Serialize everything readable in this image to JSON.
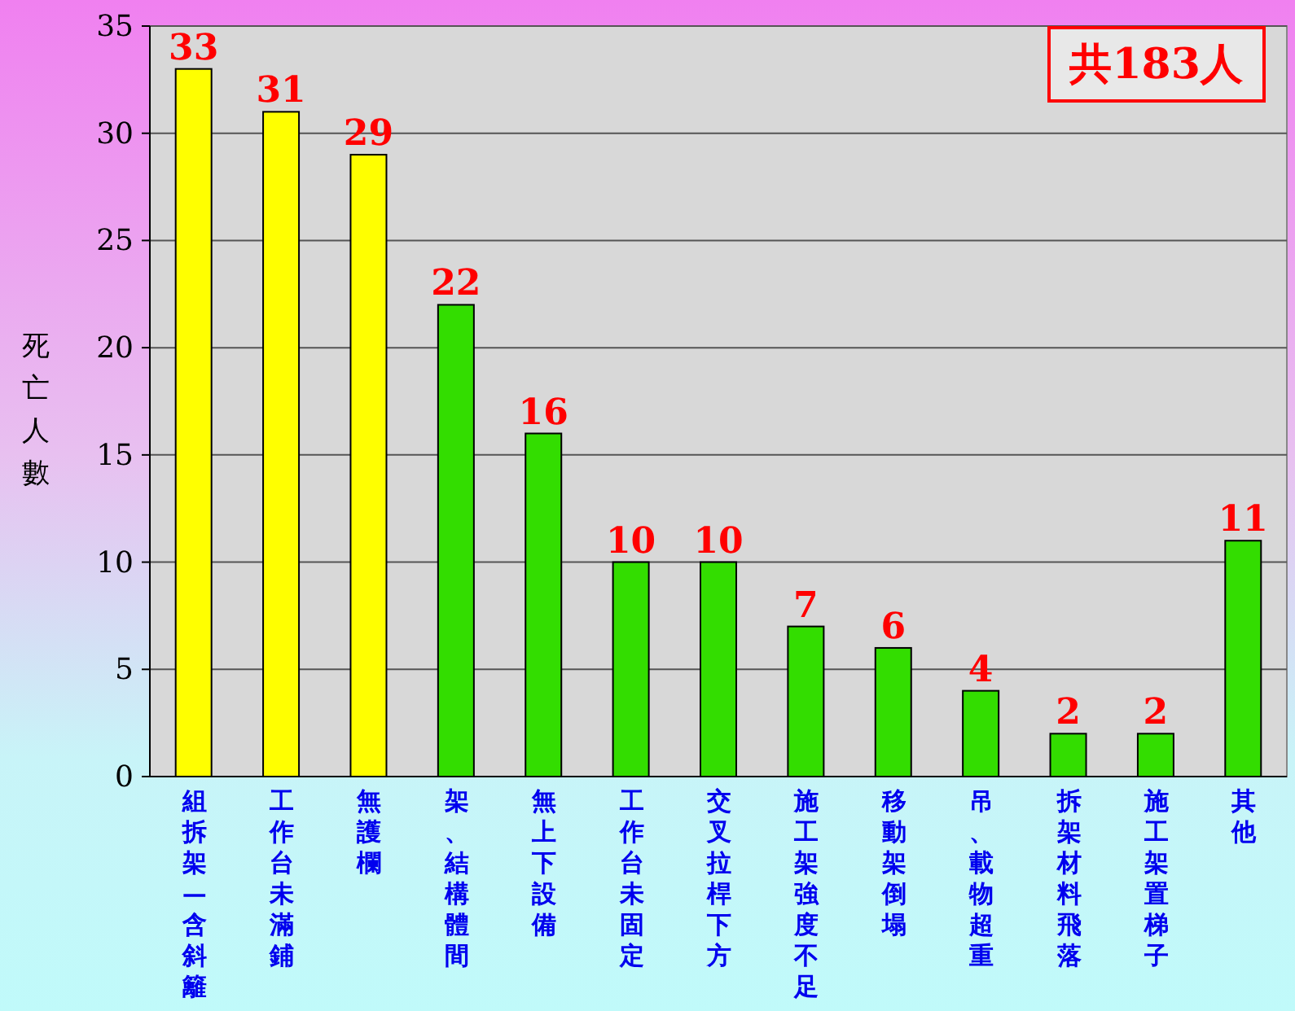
{
  "chart_data": {
    "type": "bar",
    "ylabel": "死亡人數",
    "categories": [
      "組拆架—含斜籬",
      "工作台未滿鋪",
      "無護欄",
      "架、結構體間",
      "無上下設備",
      "工作台未固定",
      "交叉拉桿下方",
      "施工架強度不足",
      "移動架倒塌",
      "吊、載物超重",
      "拆架材料飛落",
      "施工架置梯子",
      "其他"
    ],
    "values": [
      33,
      31,
      29,
      22,
      16,
      10,
      10,
      7,
      6,
      4,
      2,
      2,
      11
    ],
    "colors": [
      "#ffff00",
      "#ffff00",
      "#ffff00",
      "#33dd00",
      "#33dd00",
      "#33dd00",
      "#33dd00",
      "#33dd00",
      "#33dd00",
      "#33dd00",
      "#33dd00",
      "#33dd00",
      "#33dd00"
    ],
    "ylim": [
      0,
      35
    ],
    "yticks": [
      0,
      5,
      10,
      15,
      20,
      25,
      30,
      35
    ],
    "grid": "y",
    "data_labels": true,
    "annotations": [
      "共183人"
    ]
  }
}
